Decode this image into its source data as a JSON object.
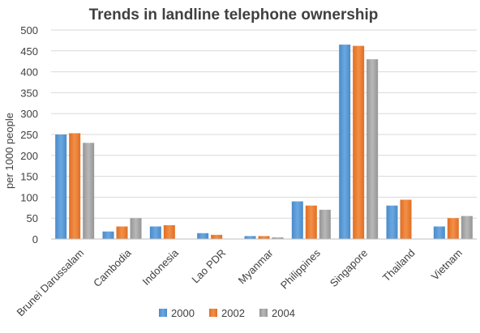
{
  "chart_data": {
    "type": "bar",
    "title": "Trends in landline telephone ownership",
    "ylabel": "per 1000 people",
    "xlabel": "",
    "ylim": [
      0,
      500
    ],
    "yticks": [
      0,
      50,
      100,
      150,
      200,
      250,
      300,
      350,
      400,
      450,
      500
    ],
    "grid": true,
    "legend": "bottom",
    "categories": [
      "Brunei Darussalam",
      "Cambodia",
      "Indonesia",
      "Lao PDR",
      "Myanmar",
      "Philippines",
      "Singapore",
      "Thailand",
      "Vietnam"
    ],
    "series": [
      {
        "name": "2000",
        "color": "#5b9bd5",
        "values": [
          250,
          18,
          30,
          14,
          7,
          90,
          465,
          80,
          30
        ]
      },
      {
        "name": "2002",
        "color": "#ed7d31",
        "values": [
          253,
          30,
          33,
          10,
          7,
          80,
          462,
          94,
          50
        ]
      },
      {
        "name": "2004",
        "color": "#a5a5a5",
        "values": [
          230,
          50,
          0,
          0,
          4,
          70,
          430,
          0,
          55
        ]
      }
    ]
  }
}
